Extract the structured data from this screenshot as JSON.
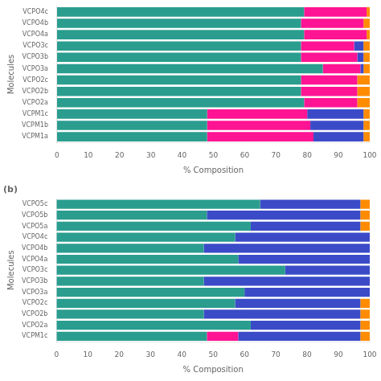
{
  "chart_data": [
    {
      "type": "bar",
      "orientation": "horizontal",
      "stacked": true,
      "categories": [
        "VCPM1a",
        "VCPM1b",
        "VCPM1c",
        "VCPO2a",
        "VCPO2b",
        "VCPO2c",
        "VCPO3a",
        "VCPO3b",
        "VCPO3c",
        "VCPO4a",
        "VCPO4b",
        "VCPO4c"
      ],
      "series": [
        {
          "color": "#2A9D8F",
          "values": [
            48,
            48,
            48,
            79,
            78,
            78,
            85,
            78,
            78,
            79,
            78,
            79
          ]
        },
        {
          "color": "#FF1493",
          "values": [
            34,
            33,
            32,
            17,
            18,
            18,
            12,
            18,
            17,
            20,
            20,
            20
          ]
        },
        {
          "color": "#3B4BC8",
          "values": [
            16,
            17,
            18,
            0,
            0,
            0,
            1,
            2,
            3,
            0,
            0,
            0
          ]
        },
        {
          "color": "#FF8C00",
          "values": [
            2,
            2,
            2,
            4,
            4,
            4,
            2,
            2,
            2,
            1,
            2,
            1
          ]
        }
      ],
      "xlabel": "% Composition",
      "ylabel": "Molecules",
      "xlim": [
        0,
        100
      ],
      "xticks": [
        0,
        10,
        20,
        30,
        40,
        50,
        60,
        70,
        80,
        90,
        100
      ],
      "grid": false
    },
    {
      "type": "bar",
      "orientation": "horizontal",
      "stacked": true,
      "title": "(b)",
      "categories": [
        "VCPM1c",
        "VCPO2a",
        "VCPO2b",
        "VCPO2c",
        "VCPO3a",
        "VCPO3b",
        "VCPO3c",
        "VCPO4a",
        "VCPO4b",
        "VCPO4c",
        "VCPO5a",
        "VCPO5b",
        "VCPO5c"
      ],
      "series": [
        {
          "color": "#2A9D8F",
          "values": [
            48,
            62,
            47,
            57,
            60,
            47,
            73,
            58,
            47,
            57,
            62,
            48,
            65
          ]
        },
        {
          "color": "#FF1493",
          "values": [
            10,
            0,
            0,
            0,
            0,
            0,
            0,
            0,
            0,
            0,
            0,
            0,
            0
          ]
        },
        {
          "color": "#3B4BC8",
          "values": [
            39,
            35,
            50,
            40,
            40,
            53,
            27,
            42,
            53,
            43,
            35,
            49,
            32
          ]
        },
        {
          "color": "#FF8C00",
          "values": [
            3,
            3,
            3,
            3,
            0,
            0,
            0,
            0,
            0,
            0,
            3,
            3,
            3
          ]
        }
      ],
      "xlabel": "% Composition",
      "ylabel": "Molecules",
      "xlim": [
        0,
        100
      ],
      "xticks": [
        0,
        10,
        20,
        30,
        40,
        50,
        60,
        70,
        80,
        90,
        100
      ],
      "grid": false
    }
  ]
}
